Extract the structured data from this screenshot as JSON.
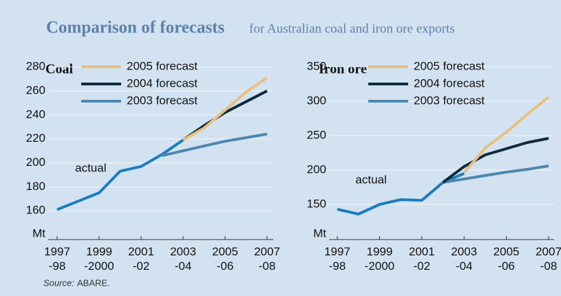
{
  "title": "Comparison of forecasts",
  "subtitle": "for Australian coal and iron ore exports",
  "source_label": "Source:",
  "source": "ABARE.",
  "chart_data": [
    {
      "type": "line",
      "title": "Coal",
      "y_label": "Mt",
      "categories": [
        "1997\n-98",
        null,
        "1999\n-2000",
        null,
        "2001\n-02",
        null,
        "2003\n-04",
        null,
        "2005\n-06",
        null,
        "2007\n-08"
      ],
      "ylim": [
        136,
        287
      ],
      "yticks": [
        160,
        180,
        200,
        220,
        240,
        260,
        280
      ],
      "grid": true,
      "legend": "top-right",
      "series": [
        {
          "name": "2005 forecast",
          "color": "#e8c07f",
          "values": [
            null,
            null,
            null,
            null,
            null,
            null,
            219,
            229,
            244,
            259,
            271
          ]
        },
        {
          "name": "2004 forecast",
          "color": "#0d2b3e",
          "values": [
            null,
            null,
            null,
            null,
            null,
            null,
            219,
            231,
            242,
            251,
            260
          ]
        },
        {
          "name": "2003 forecast",
          "color": "#4d87b0",
          "values": [
            null,
            null,
            null,
            null,
            null,
            206,
            210,
            214,
            218,
            221,
            224
          ]
        },
        {
          "name": "actual",
          "color": "#1a7cc1",
          "inline_label": true,
          "values": [
            161,
            168,
            175,
            193,
            197,
            207,
            219,
            null,
            null,
            null,
            null
          ]
        }
      ]
    },
    {
      "type": "line",
      "title": "Iron ore",
      "y_label": "Mt",
      "categories": [
        "1997\n-98",
        null,
        "1999\n-2000",
        null,
        "2001\n-02",
        null,
        "2003\n-04",
        null,
        "2005\n-06",
        null,
        "2007\n-08"
      ],
      "ylim": [
        99,
        362
      ],
      "yticks": [
        150,
        200,
        250,
        300,
        350
      ],
      "grid": true,
      "legend": "top-right",
      "series": [
        {
          "name": "2005 forecast",
          "color": "#e8c07f",
          "values": [
            null,
            null,
            null,
            null,
            null,
            null,
            196,
            232,
            255,
            281,
            306
          ]
        },
        {
          "name": "2004 forecast",
          "color": "#0d2b3e",
          "values": [
            null,
            null,
            null,
            null,
            null,
            182,
            205,
            222,
            231,
            240,
            246
          ]
        },
        {
          "name": "2003 forecast",
          "color": "#4d87b0",
          "values": [
            null,
            null,
            null,
            null,
            null,
            182,
            187,
            192,
            197,
            201,
            206
          ]
        },
        {
          "name": "actual",
          "color": "#1a7cc1",
          "inline_label": true,
          "values": [
            143,
            136,
            150,
            157,
            156,
            182,
            195,
            null,
            null,
            null,
            null
          ]
        }
      ]
    }
  ]
}
